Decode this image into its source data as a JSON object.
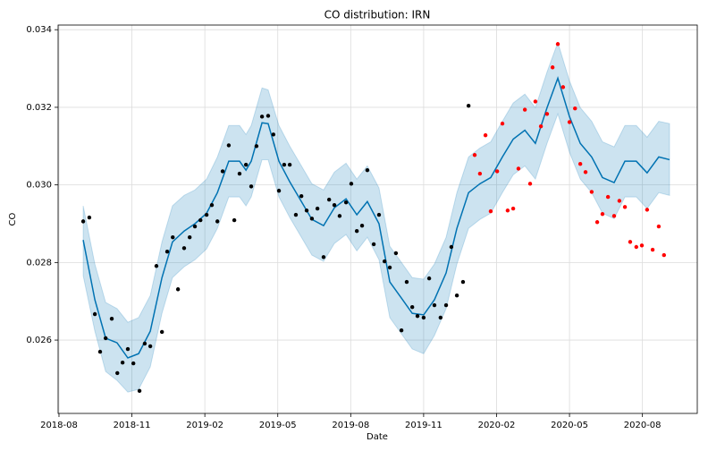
{
  "chart_data": {
    "type": "line",
    "title": "CO distribution: IRN",
    "xlabel": "Date",
    "ylabel": "CO",
    "grid": true,
    "xlim": [
      2018.58,
      2020.771
    ],
    "ylim": [
      0.02411,
      0.03412
    ],
    "xticks": [
      {
        "value": 2018.583,
        "label": "2018-08"
      },
      {
        "value": 2018.833,
        "label": "2018-11"
      },
      {
        "value": 2019.083,
        "label": "2019-02"
      },
      {
        "value": 2019.333,
        "label": "2019-05"
      },
      {
        "value": 2019.583,
        "label": "2019-08"
      },
      {
        "value": 2019.833,
        "label": "2019-11"
      },
      {
        "value": 2020.083,
        "label": "2020-02"
      },
      {
        "value": 2020.333,
        "label": "2020-05"
      },
      {
        "value": 2020.583,
        "label": "2020-08"
      }
    ],
    "yticks": [
      0.026,
      0.028,
      {
        "value": 0.03,
        "label": "0.030"
      },
      0.032,
      0.034
    ],
    "forecast": {
      "color": "#0072b2",
      "x": [
        2018.666,
        2018.706,
        2018.743,
        2018.782,
        2018.819,
        2018.856,
        2018.896,
        2018.936,
        2018.972,
        2019.012,
        2019.049,
        2019.089,
        2019.126,
        2019.165,
        2019.202,
        2019.224,
        2019.242,
        2019.279,
        2019.3,
        2019.337,
        2019.374,
        2019.414,
        2019.45,
        2019.49,
        2019.527,
        2019.567,
        2019.604,
        2019.64,
        2019.68,
        2019.717,
        2019.757,
        2019.794,
        2019.833,
        2019.87,
        2019.91,
        2019.947,
        2019.987,
        2020.026,
        2020.063,
        2020.103,
        2020.14,
        2020.18,
        2020.216,
        2020.256,
        2020.293,
        2020.333,
        2020.37,
        2020.409,
        2020.446,
        2020.486,
        2020.523,
        2020.562,
        2020.599,
        2020.639,
        2020.676
      ],
      "values": [
        0.02858,
        0.02704,
        0.02605,
        0.02593,
        0.02554,
        0.02565,
        0.02623,
        0.02761,
        0.02853,
        0.02881,
        0.029,
        0.02927,
        0.0298,
        0.03061,
        0.03061,
        0.03038,
        0.03061,
        0.0316,
        0.03158,
        0.03061,
        0.03008,
        0.02957,
        0.02911,
        0.02895,
        0.02941,
        0.02964,
        0.02923,
        0.02957,
        0.029,
        0.0275,
        0.02708,
        0.02669,
        0.02665,
        0.02704,
        0.02773,
        0.02888,
        0.0298,
        0.03003,
        0.03019,
        0.03072,
        0.03118,
        0.03141,
        0.03107,
        0.03199,
        0.03275,
        0.03176,
        0.03107,
        0.03072,
        0.03019,
        0.03006,
        0.03061,
        0.03061,
        0.03031,
        0.03072,
        0.03065
      ],
      "upper": [
        0.02946,
        0.02796,
        0.02697,
        0.02681,
        0.02646,
        0.02658,
        0.02715,
        0.02853,
        0.02946,
        0.02973,
        0.02987,
        0.03015,
        0.03072,
        0.03153,
        0.03153,
        0.0313,
        0.03153,
        0.0325,
        0.03245,
        0.03153,
        0.031,
        0.03049,
        0.03003,
        0.02987,
        0.03033,
        0.03056,
        0.03015,
        0.03049,
        0.02992,
        0.02842,
        0.028,
        0.02761,
        0.02757,
        0.02796,
        0.02865,
        0.0298,
        0.03072,
        0.03095,
        0.03111,
        0.03164,
        0.03211,
        0.03234,
        0.03199,
        0.03291,
        0.03367,
        0.03268,
        0.03199,
        0.03164,
        0.03111,
        0.03098,
        0.03153,
        0.03153,
        0.03123,
        0.03164,
        0.03158
      ],
      "lower": [
        0.02766,
        0.02623,
        0.02519,
        0.02496,
        0.02466,
        0.02473,
        0.02531,
        0.02669,
        0.02761,
        0.02789,
        0.02807,
        0.02835,
        0.02888,
        0.02969,
        0.02969,
        0.02946,
        0.02969,
        0.03065,
        0.03065,
        0.02969,
        0.02916,
        0.02865,
        0.02819,
        0.02803,
        0.02849,
        0.02872,
        0.0283,
        0.02865,
        0.02807,
        0.02658,
        0.02616,
        0.02577,
        0.02565,
        0.02612,
        0.02681,
        0.02796,
        0.02888,
        0.02911,
        0.02927,
        0.0298,
        0.03026,
        0.03049,
        0.03015,
        0.03107,
        0.03183,
        0.03084,
        0.03015,
        0.0298,
        0.02927,
        0.02913,
        0.02969,
        0.02969,
        0.02939,
        0.0298,
        0.02973
      ]
    },
    "actual": {
      "color": "#000000",
      "x": [
        2018.666,
        2018.687,
        2018.706,
        2018.724,
        2018.743,
        2018.764,
        2018.783,
        2018.801,
        2018.819,
        2018.838,
        2018.859,
        2018.877,
        2018.896,
        2018.917,
        2018.936,
        2018.954,
        2018.973,
        2018.991,
        2019.012,
        2019.031,
        2019.049,
        2019.068,
        2019.089,
        2019.107,
        2019.126,
        2019.144,
        2019.165,
        2019.184,
        2019.202,
        2019.224,
        2019.242,
        2019.26,
        2019.279,
        2019.3,
        2019.318,
        2019.337,
        2019.355,
        2019.374,
        2019.395,
        2019.414,
        2019.432,
        2019.45,
        2019.469,
        2019.49,
        2019.509,
        2019.527,
        2019.545,
        2019.567,
        2019.585,
        2019.604,
        2019.622,
        2019.64,
        2019.662,
        2019.68,
        2019.699,
        2019.717,
        2019.738,
        2019.757,
        2019.775,
        2019.794,
        2019.812,
        2019.833,
        2019.852,
        2019.87,
        2019.891,
        2019.91,
        2019.928,
        2019.947,
        2019.968,
        2019.987
      ],
      "values": [
        0.02906,
        0.02916,
        0.02667,
        0.0257,
        0.02605,
        0.02655,
        0.02515,
        0.02542,
        0.02577,
        0.0254,
        0.02469,
        0.02591,
        0.02584,
        0.02791,
        0.02621,
        0.02828,
        0.02865,
        0.02731,
        0.02837,
        0.02865,
        0.02893,
        0.02909,
        0.02923,
        0.02948,
        0.02906,
        0.03035,
        0.03102,
        0.02909,
        0.03029,
        0.03052,
        0.02996,
        0.031,
        0.03176,
        0.03178,
        0.0313,
        0.02985,
        0.03052,
        0.03052,
        0.02923,
        0.02971,
        0.02934,
        0.02913,
        0.02939,
        0.02814,
        0.02962,
        0.02948,
        0.0292,
        0.02955,
        0.03003,
        0.02881,
        0.02895,
        0.03038,
        0.02847,
        0.02923,
        0.02803,
        0.02787,
        0.02824,
        0.02625,
        0.0275,
        0.02685,
        0.02662,
        0.02658,
        0.02759,
        0.0269,
        0.02658,
        0.0269,
        0.0284,
        0.02715,
        0.0275,
        0.03204
      ]
    },
    "test": {
      "color": "#ff0000",
      "x": [
        2020.008,
        2020.026,
        2020.045,
        2020.063,
        2020.085,
        2020.103,
        2020.121,
        2020.14,
        2020.158,
        2020.18,
        2020.198,
        2020.216,
        2020.235,
        2020.256,
        2020.275,
        2020.293,
        2020.311,
        2020.333,
        2020.352,
        2020.37,
        2020.388,
        2020.409,
        2020.428,
        2020.446,
        2020.465,
        2020.486,
        2020.504,
        2020.523,
        2020.541,
        2020.562,
        2020.581,
        2020.599,
        2020.618,
        2020.639,
        2020.657
      ],
      "values": [
        0.03077,
        0.03029,
        0.03128,
        0.02932,
        0.03035,
        0.03158,
        0.02934,
        0.02939,
        0.03042,
        0.03194,
        0.03003,
        0.03215,
        0.03151,
        0.03183,
        0.03303,
        0.03363,
        0.03252,
        0.03162,
        0.03197,
        0.03054,
        0.03033,
        0.02982,
        0.02904,
        0.02925,
        0.02969,
        0.0292,
        0.02959,
        0.02943,
        0.02853,
        0.0284,
        0.02844,
        0.02936,
        0.02833,
        0.02893,
        0.02819
      ]
    }
  }
}
